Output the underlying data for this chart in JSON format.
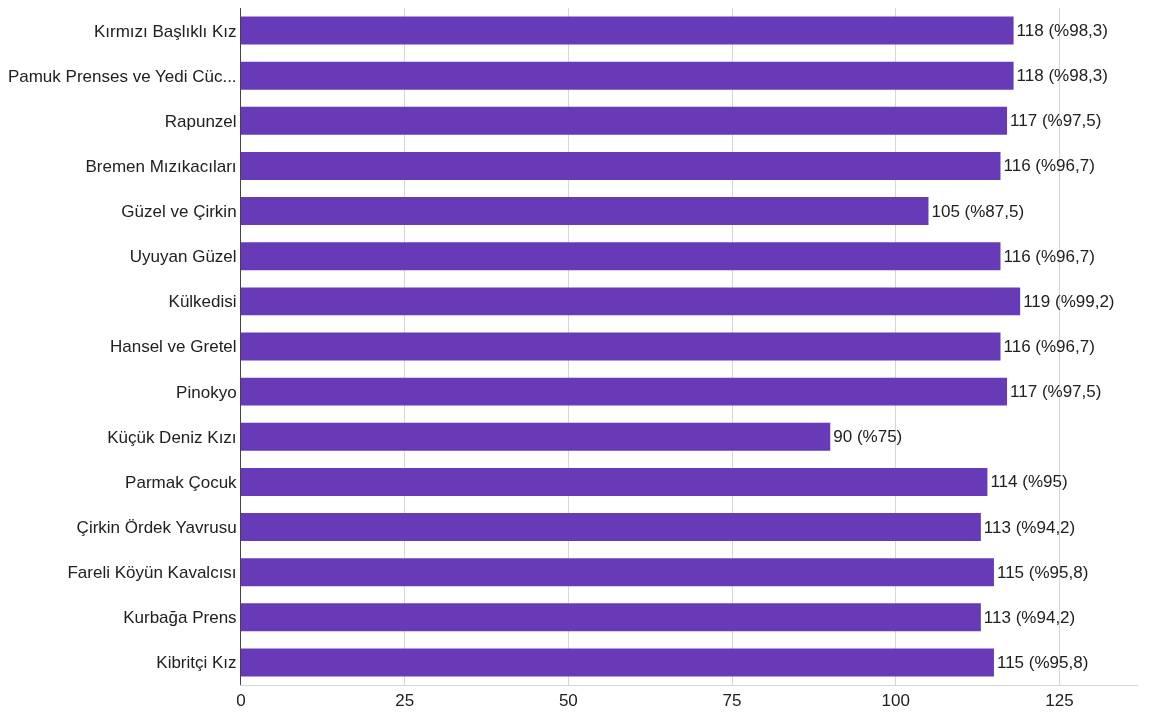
{
  "chart_data": {
    "type": "bar",
    "orientation": "horizontal",
    "categories": [
      "Kırmızı Başlıklı Kız",
      "Pamuk Prenses ve Yedi Cüc...",
      "Rapunzel",
      "Bremen Mızıkacıları",
      "Güzel ve Çirkin",
      "Uyuyan Güzel",
      "Külkedisi",
      "Hansel ve Gretel",
      "Pinokyo",
      "Küçük Deniz Kızı",
      "Parmak Çocuk",
      "Çirkin Ördek Yavrusu",
      "Fareli Köyün Kavalcısı",
      "Kurbağa Prens",
      "Kibritçi Kız"
    ],
    "values": [
      118,
      118,
      117,
      116,
      105,
      116,
      119,
      116,
      117,
      90,
      114,
      113,
      115,
      113,
      115
    ],
    "value_labels": [
      "118 (%98,3)",
      "118 (%98,3)",
      "117 (%97,5)",
      "116 (%96,7)",
      "105 (%87,5)",
      "116 (%96,7)",
      "119 (%99,2)",
      "116 (%96,7)",
      "117 (%97,5)",
      "90 (%75)",
      "114 (%95)",
      "113 (%94,2)",
      "115 (%95,8)",
      "113 (%94,2)",
      "115 (%95,8)"
    ],
    "color": "#673ab7",
    "xlim": [
      0,
      137
    ],
    "xticks": [
      0,
      25,
      50,
      75,
      100,
      125
    ],
    "grid": "x"
  }
}
